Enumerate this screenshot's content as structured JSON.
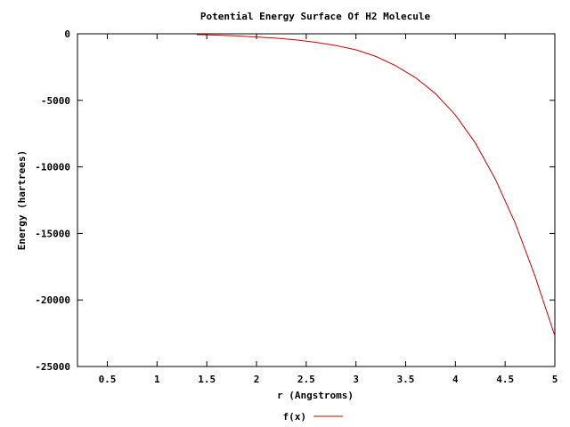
{
  "chart_data": {
    "type": "line",
    "title": "Potential Energy Surface Of H2 Molecule",
    "xlabel": "r (Angstroms)",
    "ylabel": "Energy (hartrees)",
    "xlim": [
      0.2,
      5
    ],
    "ylim": [
      -25000,
      0
    ],
    "xticks": [
      0.5,
      1,
      1.5,
      2,
      2.5,
      3,
      3.5,
      4,
      4.5,
      5
    ],
    "xtick_labels": [
      "0.5",
      "1",
      "1.5",
      "2",
      "2.5",
      "3",
      "3.5",
      "4",
      "4.5",
      "5"
    ],
    "yticks": [
      0,
      -5000,
      -10000,
      -15000,
      -20000,
      -25000
    ],
    "ytick_labels": [
      "0",
      "-5000",
      "-10000",
      "-15000",
      "-20000",
      "-25000"
    ],
    "grid": false,
    "legend_position": "bottom-center",
    "series": [
      {
        "name": "f(x)",
        "color": "#cc0000",
        "x": [
          1.4,
          1.6,
          1.8,
          2.0,
          2.2,
          2.4,
          2.6,
          2.8,
          3.0,
          3.2,
          3.4,
          3.6,
          3.8,
          4.0,
          4.2,
          4.4,
          4.6,
          4.8,
          5.0
        ],
        "y": [
          -60,
          -100,
          -160,
          -240,
          -330,
          -460,
          -640,
          -880,
          -1200,
          -1700,
          -2400,
          -3300,
          -4500,
          -6100,
          -8200,
          -10900,
          -14200,
          -18200,
          -22700
        ]
      }
    ]
  }
}
